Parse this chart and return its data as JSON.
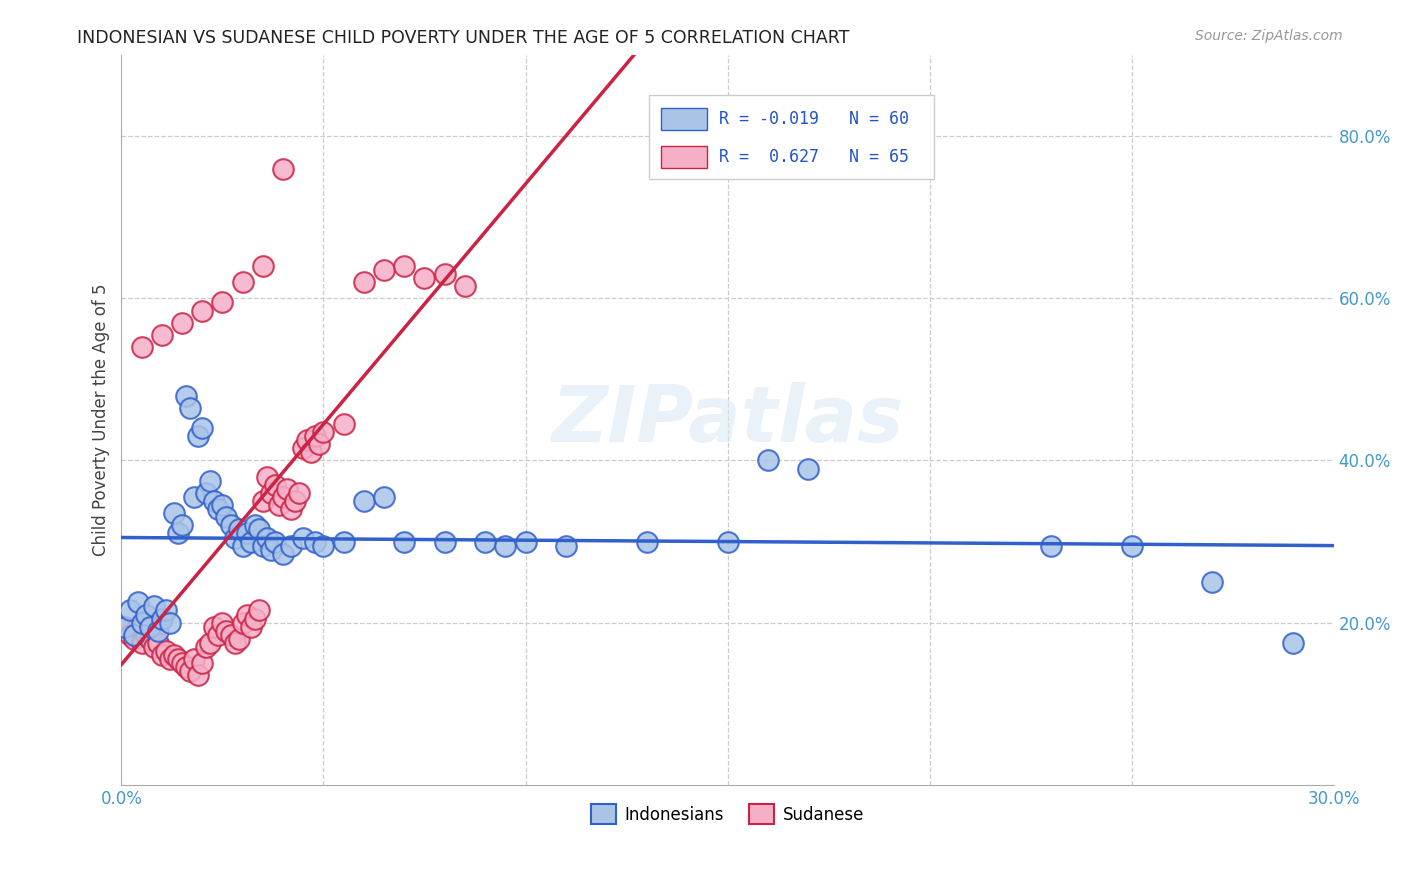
{
  "title": "INDONESIAN VS SUDANESE CHILD POVERTY UNDER THE AGE OF 5 CORRELATION CHART",
  "source": "Source: ZipAtlas.com",
  "ylabel": "Child Poverty Under the Age of 5",
  "xlim": [
    0.0,
    0.3
  ],
  "ylim": [
    0.0,
    0.9
  ],
  "indonesian_color": "#aac4e8",
  "sudanese_color": "#f5b0c8",
  "indonesian_line_color": "#3060cc",
  "sudanese_line_color": "#cc2244",
  "watermark": "ZIPatlas",
  "legend_r_indonesian": "-0.019",
  "legend_n_indonesian": "60",
  "legend_r_sudanese": "0.627",
  "legend_n_sudanese": "65",
  "indonesian_points": [
    [
      0.001,
      0.195
    ],
    [
      0.002,
      0.215
    ],
    [
      0.003,
      0.185
    ],
    [
      0.004,
      0.225
    ],
    [
      0.005,
      0.2
    ],
    [
      0.006,
      0.21
    ],
    [
      0.007,
      0.195
    ],
    [
      0.008,
      0.22
    ],
    [
      0.009,
      0.19
    ],
    [
      0.01,
      0.205
    ],
    [
      0.011,
      0.215
    ],
    [
      0.012,
      0.2
    ],
    [
      0.013,
      0.335
    ],
    [
      0.014,
      0.31
    ],
    [
      0.015,
      0.32
    ],
    [
      0.016,
      0.48
    ],
    [
      0.017,
      0.465
    ],
    [
      0.018,
      0.355
    ],
    [
      0.019,
      0.43
    ],
    [
      0.02,
      0.44
    ],
    [
      0.021,
      0.36
    ],
    [
      0.022,
      0.375
    ],
    [
      0.023,
      0.35
    ],
    [
      0.024,
      0.34
    ],
    [
      0.025,
      0.345
    ],
    [
      0.026,
      0.33
    ],
    [
      0.027,
      0.32
    ],
    [
      0.028,
      0.305
    ],
    [
      0.029,
      0.315
    ],
    [
      0.03,
      0.295
    ],
    [
      0.031,
      0.31
    ],
    [
      0.032,
      0.3
    ],
    [
      0.033,
      0.32
    ],
    [
      0.034,
      0.315
    ],
    [
      0.035,
      0.295
    ],
    [
      0.036,
      0.305
    ],
    [
      0.037,
      0.29
    ],
    [
      0.038,
      0.3
    ],
    [
      0.04,
      0.285
    ],
    [
      0.042,
      0.295
    ],
    [
      0.045,
      0.305
    ],
    [
      0.048,
      0.3
    ],
    [
      0.05,
      0.295
    ],
    [
      0.055,
      0.3
    ],
    [
      0.06,
      0.35
    ],
    [
      0.065,
      0.355
    ],
    [
      0.07,
      0.3
    ],
    [
      0.08,
      0.3
    ],
    [
      0.09,
      0.3
    ],
    [
      0.095,
      0.295
    ],
    [
      0.1,
      0.3
    ],
    [
      0.11,
      0.295
    ],
    [
      0.13,
      0.3
    ],
    [
      0.15,
      0.3
    ],
    [
      0.16,
      0.4
    ],
    [
      0.17,
      0.39
    ],
    [
      0.23,
      0.295
    ],
    [
      0.25,
      0.295
    ],
    [
      0.27,
      0.25
    ],
    [
      0.29,
      0.175
    ]
  ],
  "sudanese_points": [
    [
      0.001,
      0.195
    ],
    [
      0.002,
      0.185
    ],
    [
      0.003,
      0.18
    ],
    [
      0.004,
      0.195
    ],
    [
      0.005,
      0.175
    ],
    [
      0.006,
      0.185
    ],
    [
      0.007,
      0.18
    ],
    [
      0.008,
      0.17
    ],
    [
      0.009,
      0.175
    ],
    [
      0.01,
      0.16
    ],
    [
      0.011,
      0.165
    ],
    [
      0.012,
      0.155
    ],
    [
      0.013,
      0.16
    ],
    [
      0.014,
      0.155
    ],
    [
      0.015,
      0.15
    ],
    [
      0.016,
      0.145
    ],
    [
      0.017,
      0.14
    ],
    [
      0.018,
      0.155
    ],
    [
      0.019,
      0.135
    ],
    [
      0.02,
      0.15
    ],
    [
      0.021,
      0.17
    ],
    [
      0.022,
      0.175
    ],
    [
      0.023,
      0.195
    ],
    [
      0.024,
      0.185
    ],
    [
      0.025,
      0.2
    ],
    [
      0.026,
      0.19
    ],
    [
      0.027,
      0.185
    ],
    [
      0.028,
      0.175
    ],
    [
      0.029,
      0.18
    ],
    [
      0.03,
      0.2
    ],
    [
      0.031,
      0.21
    ],
    [
      0.032,
      0.195
    ],
    [
      0.033,
      0.205
    ],
    [
      0.034,
      0.215
    ],
    [
      0.035,
      0.35
    ],
    [
      0.036,
      0.38
    ],
    [
      0.037,
      0.36
    ],
    [
      0.038,
      0.37
    ],
    [
      0.039,
      0.345
    ],
    [
      0.04,
      0.355
    ],
    [
      0.041,
      0.365
    ],
    [
      0.042,
      0.34
    ],
    [
      0.043,
      0.35
    ],
    [
      0.044,
      0.36
    ],
    [
      0.045,
      0.415
    ],
    [
      0.046,
      0.425
    ],
    [
      0.047,
      0.41
    ],
    [
      0.048,
      0.43
    ],
    [
      0.049,
      0.42
    ],
    [
      0.05,
      0.435
    ],
    [
      0.055,
      0.445
    ],
    [
      0.06,
      0.62
    ],
    [
      0.065,
      0.635
    ],
    [
      0.07,
      0.64
    ],
    [
      0.075,
      0.625
    ],
    [
      0.08,
      0.63
    ],
    [
      0.085,
      0.615
    ],
    [
      0.04,
      0.76
    ],
    [
      0.035,
      0.64
    ],
    [
      0.03,
      0.62
    ],
    [
      0.025,
      0.595
    ],
    [
      0.02,
      0.585
    ],
    [
      0.015,
      0.57
    ],
    [
      0.01,
      0.555
    ],
    [
      0.005,
      0.54
    ]
  ]
}
